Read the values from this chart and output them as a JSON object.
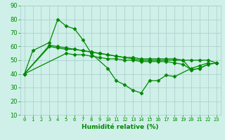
{
  "xlabel": "Humidité relative (%)",
  "x": [
    0,
    1,
    2,
    3,
    4,
    5,
    6,
    7,
    8,
    9,
    10,
    11,
    12,
    13,
    14,
    15,
    16,
    17,
    18,
    19,
    20,
    21,
    22,
    23
  ],
  "line1": [
    40,
    57,
    null,
    63,
    80,
    75,
    73,
    65,
    55,
    null,
    44,
    35,
    32,
    28,
    26,
    35,
    35,
    39,
    38,
    null,
    44,
    46,
    48,
    null
  ],
  "line2": [
    40,
    null,
    null,
    61,
    60,
    59,
    58,
    57,
    56,
    55,
    54,
    53,
    52,
    51,
    50,
    50,
    50,
    50,
    50,
    50,
    50,
    50,
    50,
    48
  ],
  "line3": [
    40,
    null,
    null,
    60,
    59,
    58,
    58,
    57,
    56,
    55,
    54,
    53,
    52,
    52,
    51,
    51,
    51,
    51,
    51,
    50,
    43,
    44,
    47,
    48
  ],
  "line4": [
    40,
    null,
    null,
    null,
    null,
    55,
    54,
    54,
    53,
    52,
    51,
    51,
    50,
    50,
    49,
    49,
    49,
    49,
    48,
    47,
    43,
    44,
    47,
    48
  ],
  "ylim": [
    10,
    90
  ],
  "yticks": [
    10,
    20,
    30,
    40,
    50,
    60,
    70,
    80,
    90
  ],
  "bg_color": "#cef0e8",
  "grid_color": "#aacccc",
  "line_color": "#008800",
  "marker": "D",
  "markersize": 2.5,
  "linewidth": 0.9,
  "tick_fontsize": 5,
  "xlabel_fontsize": 6.5
}
